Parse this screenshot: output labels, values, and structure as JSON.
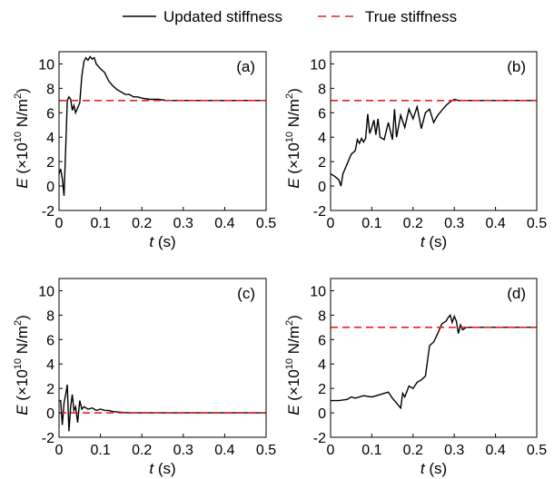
{
  "legend": {
    "items": [
      {
        "label": "Updated stiffness",
        "color": "#000000",
        "dash": "solid"
      },
      {
        "label": "True stiffness",
        "color": "#e8221e",
        "dash": "dashed"
      }
    ],
    "placement": "top-center"
  },
  "chart_data": [
    {
      "type": "line",
      "panel_label": "(a)",
      "xlabel": "t (s)",
      "ylabel": "E (×10^10 N/m^2)",
      "xlim": [
        0,
        0.5
      ],
      "ylim": [
        -2,
        11
      ],
      "xticks": [
        "0",
        "0.1",
        "0.2",
        "0.3",
        "0.4",
        "0.5"
      ],
      "yticks": [
        "-2",
        "0",
        "2",
        "4",
        "6",
        "8",
        "10"
      ],
      "series": [
        {
          "name": "Updated stiffness",
          "color": "#000000",
          "x": [
            0,
            0.004,
            0.008,
            0.012,
            0.016,
            0.02,
            0.024,
            0.028,
            0.032,
            0.036,
            0.04,
            0.045,
            0.05,
            0.055,
            0.06,
            0.065,
            0.07,
            0.075,
            0.08,
            0.085,
            0.09,
            0.095,
            0.1,
            0.11,
            0.12,
            0.13,
            0.14,
            0.15,
            0.16,
            0.17,
            0.18,
            0.19,
            0.2,
            0.22,
            0.24,
            0.26,
            0.28,
            0.3,
            0.35,
            0.4,
            0.45,
            0.5
          ],
          "y": [
            1,
            1.4,
            0.6,
            -0.8,
            3,
            7,
            7.3,
            7.1,
            6.2,
            6.6,
            6.0,
            6.4,
            6.8,
            9.0,
            10.2,
            10.5,
            10.3,
            10.6,
            10.4,
            10.5,
            10.0,
            9.8,
            9.6,
            9.3,
            8.6,
            8.2,
            7.9,
            7.7,
            7.5,
            7.5,
            7.3,
            7.3,
            7.2,
            7.1,
            7.1,
            7.0,
            7.0,
            7.0,
            7.0,
            7.0,
            7.0,
            7.0
          ]
        },
        {
          "name": "True stiffness",
          "color": "#e8221e",
          "x": [
            0,
            0.5
          ],
          "y": [
            7,
            7
          ]
        }
      ]
    },
    {
      "type": "line",
      "panel_label": "(b)",
      "xlabel": "t (s)",
      "ylabel": "E (×10^10 N/m^2)",
      "xlim": [
        0,
        0.5
      ],
      "ylim": [
        -2,
        11
      ],
      "xticks": [
        "0",
        "0.1",
        "0.2",
        "0.3",
        "0.4",
        "0.5"
      ],
      "yticks": [
        "-2",
        "0",
        "2",
        "4",
        "6",
        "8",
        "10"
      ],
      "series": [
        {
          "name": "Updated stiffness",
          "color": "#000000",
          "x": [
            0,
            0.01,
            0.02,
            0.025,
            0.03,
            0.04,
            0.05,
            0.06,
            0.065,
            0.07,
            0.075,
            0.08,
            0.085,
            0.09,
            0.095,
            0.1,
            0.105,
            0.11,
            0.115,
            0.12,
            0.13,
            0.14,
            0.15,
            0.155,
            0.16,
            0.17,
            0.18,
            0.19,
            0.2,
            0.21,
            0.22,
            0.23,
            0.24,
            0.25,
            0.26,
            0.27,
            0.28,
            0.29,
            0.3,
            0.31,
            0.32,
            0.35,
            0.4,
            0.45,
            0.5
          ],
          "y": [
            1,
            0.8,
            0.5,
            0,
            1,
            1.8,
            2.6,
            2.9,
            3.8,
            3.5,
            3.9,
            3.6,
            3.9,
            5.9,
            4.3,
            4.8,
            5.4,
            4.2,
            5.5,
            4.0,
            3.8,
            5.2,
            3.8,
            6.3,
            4.0,
            5.8,
            4.8,
            6.3,
            5.5,
            6.5,
            4.7,
            6.0,
            6.3,
            5.2,
            5.8,
            6.2,
            6.6,
            6.9,
            7.1,
            7.0,
            7.0,
            7.0,
            7.0,
            7.0,
            7.0
          ]
        },
        {
          "name": "True stiffness",
          "color": "#e8221e",
          "x": [
            0,
            0.5
          ],
          "y": [
            7,
            7
          ]
        }
      ]
    },
    {
      "type": "line",
      "panel_label": "(c)",
      "xlabel": "t (s)",
      "ylabel": "E (×10^10 N/m^2)",
      "xlim": [
        0,
        0.5
      ],
      "ylim": [
        -2,
        11
      ],
      "xticks": [
        "0",
        "0.1",
        "0.2",
        "0.3",
        "0.4",
        "0.5"
      ],
      "yticks": [
        "-2",
        "0",
        "2",
        "4",
        "6",
        "8",
        "10"
      ],
      "series": [
        {
          "name": "Updated stiffness",
          "color": "#000000",
          "x": [
            0,
            0.004,
            0.008,
            0.012,
            0.016,
            0.02,
            0.024,
            0.028,
            0.032,
            0.036,
            0.04,
            0.045,
            0.05,
            0.055,
            0.06,
            0.07,
            0.08,
            0.09,
            0.1,
            0.11,
            0.12,
            0.13,
            0.15,
            0.17,
            0.2,
            0.25,
            0.3,
            0.35,
            0.4,
            0.45,
            0.5
          ],
          "y": [
            1,
            1,
            -1,
            0.8,
            1.5,
            2.3,
            -1.5,
            0.5,
            1.5,
            0.2,
            0.5,
            -0.8,
            1.0,
            0.3,
            0.5,
            0.3,
            0.4,
            0.2,
            0.3,
            0.2,
            0.2,
            0.1,
            0.05,
            0,
            0,
            0,
            0,
            0,
            0,
            0,
            0
          ]
        },
        {
          "name": "True stiffness",
          "color": "#e8221e",
          "x": [
            0,
            0.5
          ],
          "y": [
            0,
            0
          ]
        }
      ]
    },
    {
      "type": "line",
      "panel_label": "(d)",
      "xlabel": "t (s)",
      "ylabel": "E (×10^10 N/m^2)",
      "xlim": [
        0,
        0.5
      ],
      "ylim": [
        -2,
        11
      ],
      "xticks": [
        "0",
        "0.1",
        "0.2",
        "0.3",
        "0.4",
        "0.5"
      ],
      "yticks": [
        "-2",
        "0",
        "2",
        "4",
        "6",
        "8",
        "10"
      ],
      "series": [
        {
          "name": "Updated stiffness",
          "color": "#000000",
          "x": [
            0,
            0.02,
            0.04,
            0.05,
            0.06,
            0.08,
            0.1,
            0.12,
            0.14,
            0.15,
            0.16,
            0.17,
            0.175,
            0.18,
            0.19,
            0.2,
            0.21,
            0.22,
            0.23,
            0.24,
            0.25,
            0.26,
            0.27,
            0.28,
            0.285,
            0.29,
            0.295,
            0.3,
            0.305,
            0.31,
            0.315,
            0.32,
            0.33,
            0.35,
            0.4,
            0.45,
            0.5
          ],
          "y": [
            1.0,
            1.0,
            1.1,
            1.3,
            1.2,
            1.4,
            1.3,
            1.5,
            1.7,
            1.2,
            0.8,
            0.4,
            1.6,
            1.3,
            2.2,
            2.0,
            2.5,
            2.7,
            3.0,
            5.5,
            5.8,
            6.5,
            7.3,
            7.5,
            7.8,
            8.0,
            7.4,
            7.9,
            7.5,
            6.5,
            7.2,
            6.8,
            7.0,
            7.0,
            7.0,
            7.0,
            7.0
          ]
        },
        {
          "name": "True stiffness",
          "color": "#e8221e",
          "x": [
            0,
            0.5
          ],
          "y": [
            7,
            7
          ]
        }
      ]
    }
  ]
}
